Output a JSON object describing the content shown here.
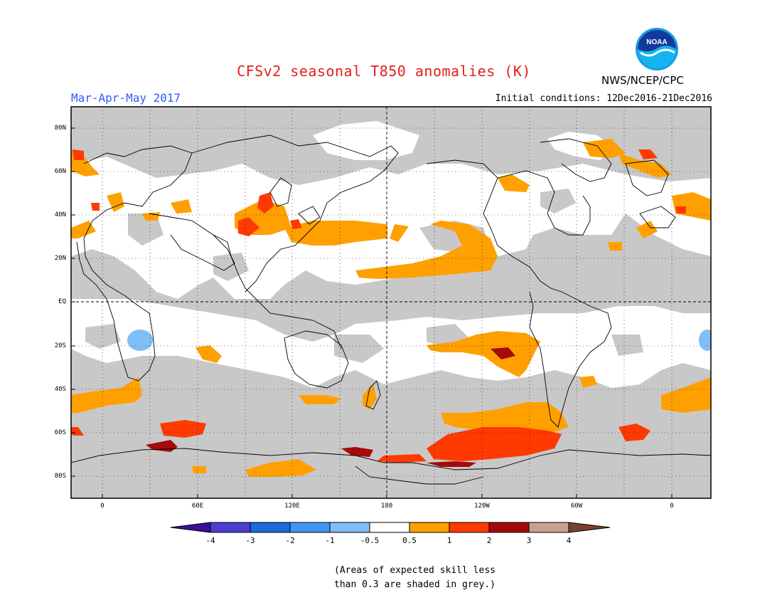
{
  "header": {
    "title": "CFSv2 seasonal T850 anomalies (K)",
    "period": "Mar-Apr-May 2017",
    "initial_conditions": "Initial conditions: 12Dec2016-21Dec2016",
    "agency": "NWS/NCEP/CPC",
    "logo_text": "NOAA"
  },
  "axes": {
    "lat_labels": [
      "80N",
      "60N",
      "40N",
      "20N",
      "EQ",
      "20S",
      "40S",
      "60S",
      "80S"
    ],
    "lon_labels": [
      "0",
      "60E",
      "120E",
      "180",
      "120W",
      "60W",
      "0"
    ]
  },
  "colorbar": {
    "labels": [
      "-4",
      "-3",
      "-2",
      "-1",
      "-0.5",
      "0.5",
      "1",
      "2",
      "3",
      "4"
    ],
    "colors": [
      "#3a0f99",
      "#4a3fcf",
      "#1e6bd6",
      "#3f96f2",
      "#7fbef7",
      "#ffffff",
      "#ffa000",
      "#ff3a00",
      "#a50a0a",
      "#c8a090",
      "#7a4030"
    ]
  },
  "map_colors": {
    "grey": "#c8c8c8",
    "white": "#ffffff",
    "orange": "#ffa000",
    "red": "#ff3a00",
    "dark_red": "#a50a0a",
    "light_blue": "#7fbef7"
  },
  "note": {
    "line1": "(Areas of expected skill less",
    "line2": "than 0.3 are shaded in grey.)"
  }
}
